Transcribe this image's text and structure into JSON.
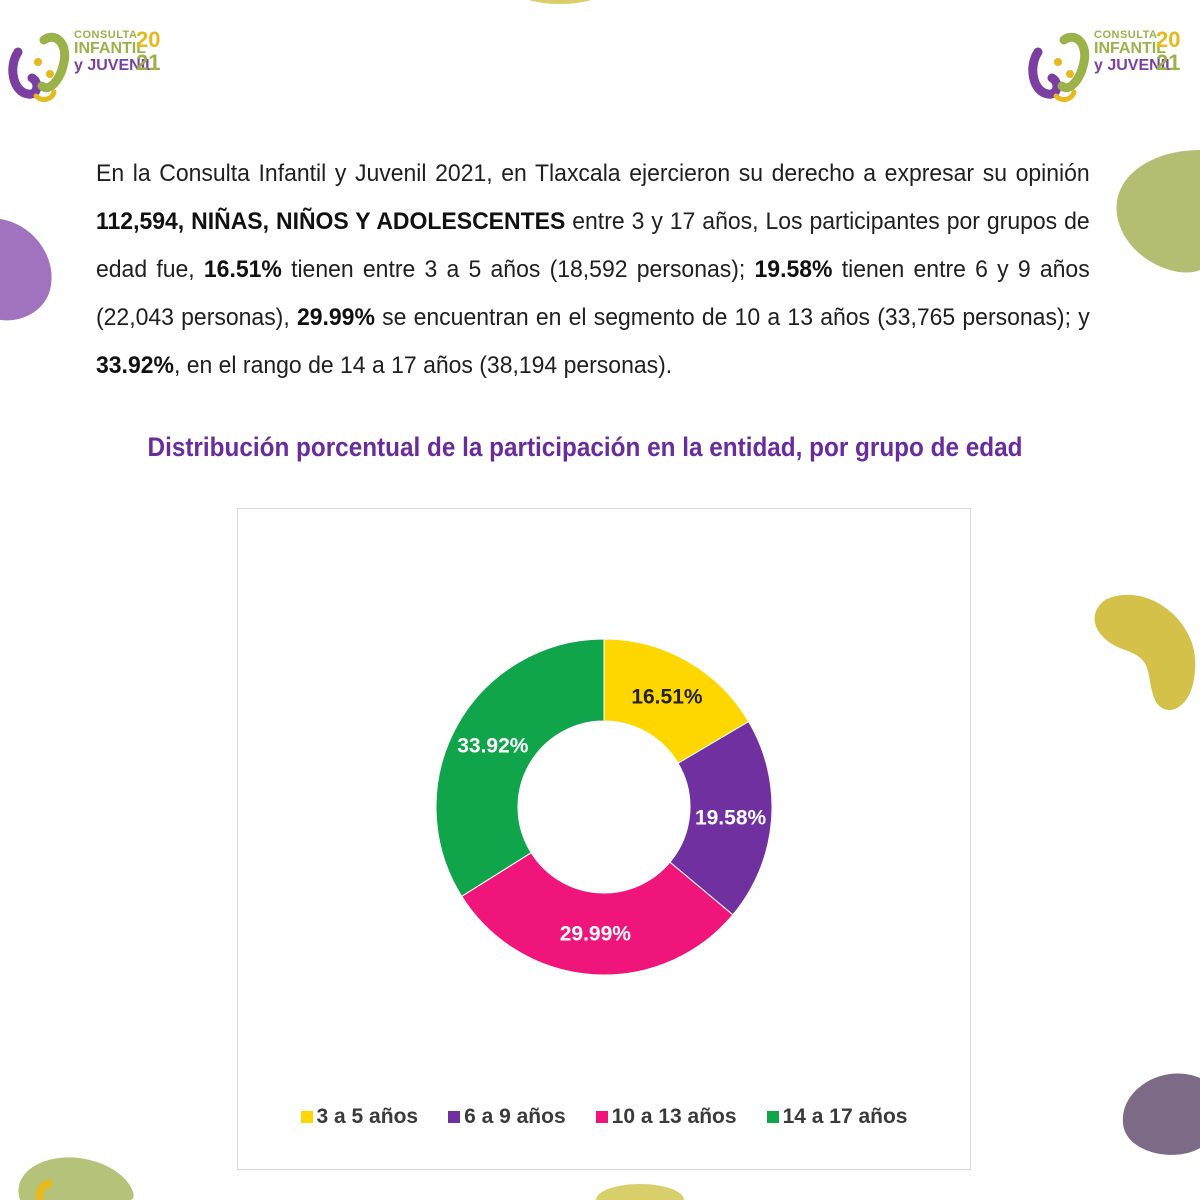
{
  "logo": {
    "line1": "CONSULTA",
    "line2": "INFANTIL",
    "line3": "y JUVENIL",
    "year_top": "20",
    "year_bottom": "21"
  },
  "paragraph": {
    "p1": "En la Consulta Infantil y Juvenil 2021, en Tlaxcala ejercieron su derecho a expresar su opinión ",
    "b1": "112,594, NIÑAS, NIÑOS Y ADOLESCENTES",
    "p2": " entre 3 y 17 años, Los participantes por grupos de edad fue, ",
    "b2": "16.51%",
    "p3": " tienen entre 3 a 5 años (18,592 personas); ",
    "b3": "19.58%",
    "p4": " tienen entre 6 y 9 años (22,043 personas), ",
    "b4": "29.99%",
    "p5": " se encuentran en el segmento de 10 a 13 años (33,765 personas); y ",
    "b5": "33.92%",
    "p6": ", en el rango de 14 a 17 años (38,194 personas)."
  },
  "chart_data": {
    "type": "pie",
    "title": "Distribución porcentual de la participación en la entidad, por grupo de edad",
    "donut": true,
    "legend_position": "bottom",
    "categories": [
      "3 a 5 años",
      "6 a 9 años",
      "10 a 13 años",
      "14 a 17 años"
    ],
    "values": [
      16.51,
      19.58,
      29.99,
      33.92
    ],
    "data_labels": [
      "16.51%",
      "19.58%",
      "29.99%",
      "33.92%"
    ],
    "colors": [
      "#ffd700",
      "#7030a0",
      "#f0157a",
      "#10a54a"
    ]
  }
}
